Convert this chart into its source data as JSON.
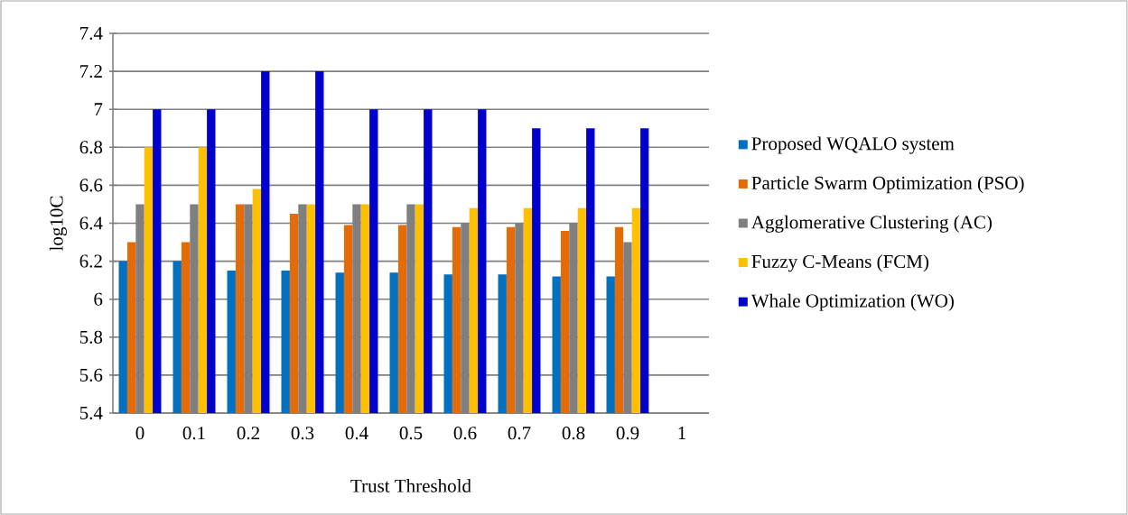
{
  "chart_data": {
    "type": "bar",
    "xlabel": "Trust Threshold",
    "ylabel": "log10C",
    "categories": [
      "0",
      "0.1",
      "0.2",
      "0.3",
      "0.4",
      "0.5",
      "0.6",
      "0.7",
      "0.8",
      "0.9",
      "1"
    ],
    "series": [
      {
        "name": "Proposed WQALO system",
        "color": "#0070c0",
        "values": [
          6.2,
          6.2,
          6.15,
          6.15,
          6.14,
          6.14,
          6.13,
          6.13,
          6.12,
          6.12,
          null
        ]
      },
      {
        "name": "Particle Swarm Optimization (PSO)",
        "color": "#e36c09",
        "values": [
          6.3,
          6.3,
          6.5,
          6.45,
          6.39,
          6.39,
          6.38,
          6.38,
          6.36,
          6.38,
          null
        ]
      },
      {
        "name": "Agglomerative Clustering (AC)",
        "color": "#7f7f7f",
        "values": [
          6.5,
          6.5,
          6.5,
          6.5,
          6.5,
          6.5,
          6.4,
          6.4,
          6.4,
          6.3,
          null
        ]
      },
      {
        "name": "Fuzzy C-Means (FCM)",
        "color": "#ffc000",
        "values": [
          6.8,
          6.8,
          6.58,
          6.5,
          6.5,
          6.5,
          6.48,
          6.48,
          6.48,
          6.48,
          null
        ]
      },
      {
        "name": "Whale Optimization (WO)",
        "color": "#0000cc",
        "values": [
          7,
          7,
          7.2,
          7.2,
          7,
          7,
          7,
          6.9,
          6.9,
          6.9,
          null
        ]
      }
    ],
    "ylim": [
      5.4,
      7.4
    ],
    "yticks": [
      5.4,
      5.6,
      5.8,
      6,
      6.2,
      6.4,
      6.6,
      6.8,
      7,
      7.2,
      7.4
    ],
    "grid": "y",
    "legend": "right"
  }
}
